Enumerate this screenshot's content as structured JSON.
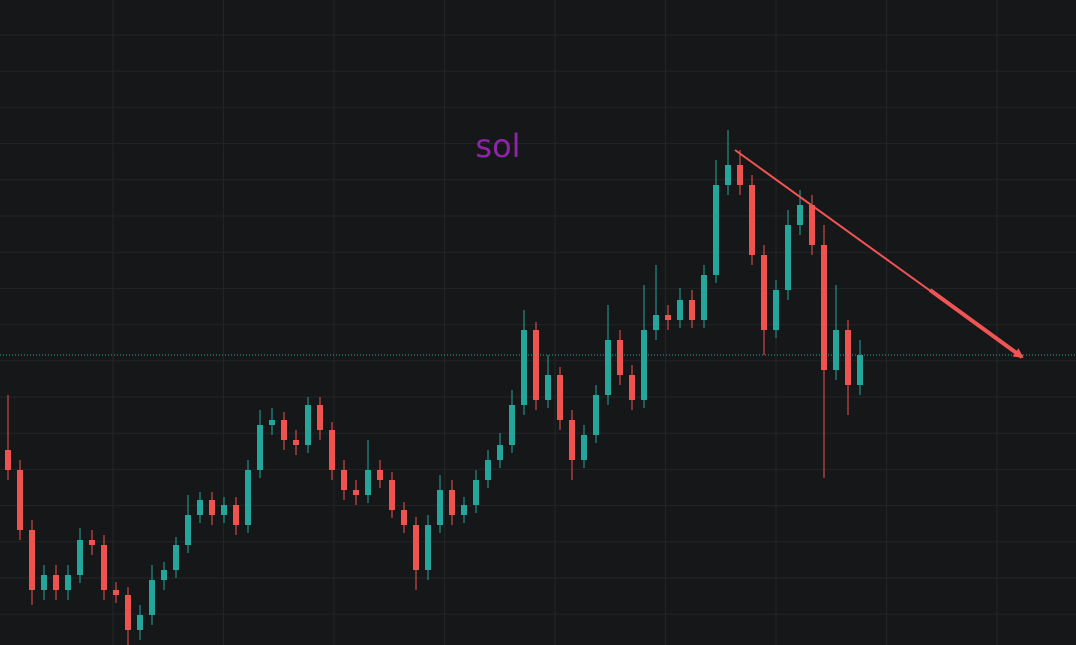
{
  "chart_data": {
    "type": "candlestick",
    "annotation": "sol",
    "annotation_color": "#8e24aa",
    "up_color": "#26a69a",
    "down_color": "#ef5350",
    "ylim": [
      0,
      645
    ],
    "grid": true,
    "price_line": true,
    "open": [
      195,
      175,
      115,
      55,
      70,
      55,
      70,
      105,
      100,
      55,
      50,
      15,
      30,
      65,
      75,
      100,
      130,
      145,
      130,
      140,
      120,
      175,
      220,
      225,
      205,
      200,
      240,
      215,
      175,
      155,
      150,
      175,
      165,
      135,
      120,
      75,
      120,
      155,
      130,
      140,
      165,
      185,
      200,
      240,
      315,
      245,
      270,
      225,
      185,
      210,
      250,
      305,
      270,
      245,
      315,
      330,
      325,
      345,
      325,
      370,
      460,
      480,
      460,
      390,
      315,
      355,
      420,
      440,
      400,
      275,
      315,
      260
    ],
    "high": [
      250,
      185,
      125,
      80,
      80,
      80,
      117,
      115,
      110,
      63,
      58,
      40,
      80,
      83,
      108,
      150,
      153,
      153,
      148,
      148,
      185,
      235,
      237,
      233,
      215,
      248,
      248,
      223,
      185,
      165,
      205,
      185,
      173,
      143,
      128,
      130,
      170,
      165,
      148,
      175,
      195,
      212,
      255,
      335,
      323,
      290,
      278,
      235,
      220,
      260,
      340,
      315,
      280,
      360,
      380,
      340,
      357,
      355,
      380,
      485,
      515,
      495,
      470,
      400,
      365,
      435,
      455,
      450,
      420,
      360,
      325,
      305
    ],
    "low": [
      165,
      105,
      40,
      45,
      45,
      45,
      62,
      90,
      45,
      42,
      0,
      5,
      20,
      55,
      67,
      92,
      122,
      120,
      122,
      110,
      112,
      167,
      210,
      195,
      190,
      192,
      205,
      165,
      145,
      140,
      142,
      157,
      127,
      112,
      55,
      65,
      112,
      120,
      122,
      132,
      157,
      177,
      192,
      230,
      235,
      237,
      215,
      165,
      177,
      202,
      240,
      260,
      235,
      237,
      305,
      315,
      317,
      317,
      317,
      362,
      450,
      450,
      380,
      290,
      307,
      345,
      410,
      390,
      167,
      265,
      230,
      250
    ],
    "close": [
      175,
      115,
      55,
      70,
      55,
      70,
      105,
      100,
      55,
      50,
      15,
      30,
      65,
      75,
      100,
      130,
      145,
      130,
      140,
      120,
      175,
      220,
      225,
      205,
      200,
      240,
      215,
      175,
      155,
      150,
      175,
      165,
      135,
      120,
      75,
      120,
      155,
      130,
      140,
      165,
      185,
      200,
      240,
      315,
      245,
      270,
      225,
      185,
      210,
      250,
      305,
      270,
      245,
      315,
      330,
      325,
      345,
      325,
      370,
      460,
      480,
      460,
      390,
      315,
      355,
      420,
      440,
      400,
      275,
      315,
      260,
      290
    ]
  }
}
